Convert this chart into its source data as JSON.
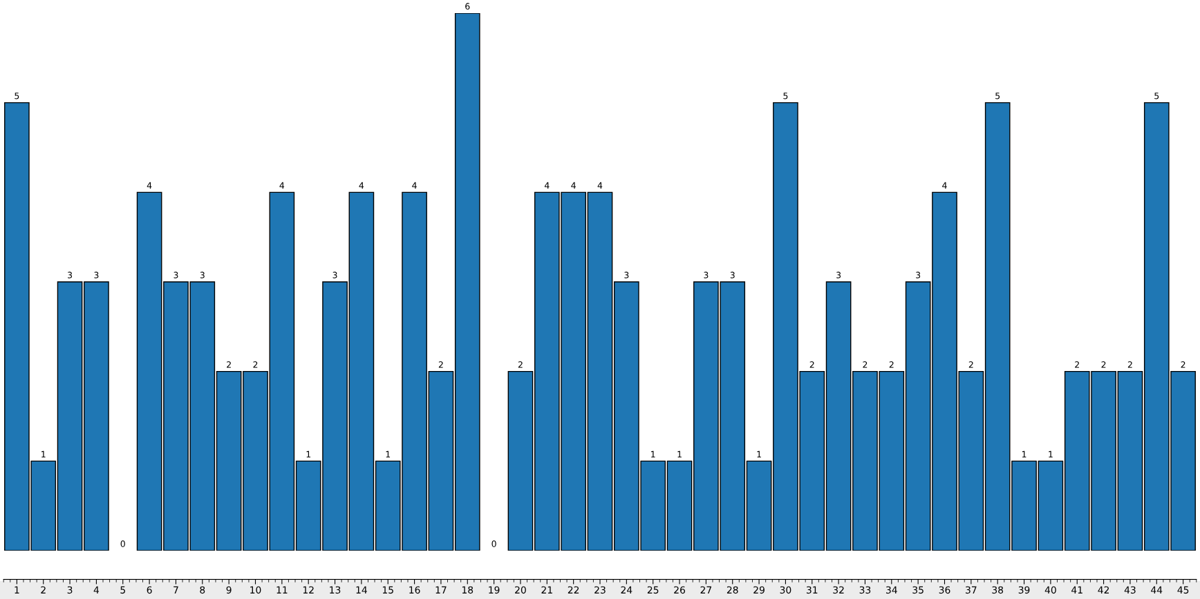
{
  "chart_data": {
    "type": "bar",
    "categories": [
      "1",
      "2",
      "3",
      "4",
      "5",
      "6",
      "7",
      "8",
      "9",
      "10",
      "11",
      "12",
      "13",
      "14",
      "15",
      "16",
      "17",
      "18",
      "19",
      "20",
      "21",
      "22",
      "23",
      "24",
      "25",
      "26",
      "27",
      "28",
      "29",
      "30",
      "31",
      "32",
      "33",
      "34",
      "35",
      "36",
      "37",
      "38",
      "39",
      "40",
      "41",
      "42",
      "43",
      "44",
      "45"
    ],
    "values": [
      5,
      1,
      3,
      3,
      0,
      4,
      3,
      3,
      2,
      2,
      4,
      1,
      3,
      4,
      1,
      4,
      2,
      6,
      0,
      2,
      4,
      4,
      4,
      3,
      1,
      1,
      3,
      3,
      1,
      5,
      2,
      3,
      2,
      2,
      3,
      4,
      2,
      5,
      1,
      1,
      2,
      2,
      2,
      5,
      2
    ],
    "color": "#1f77b4",
    "data_labels": true,
    "grid": false,
    "legend": false
  }
}
